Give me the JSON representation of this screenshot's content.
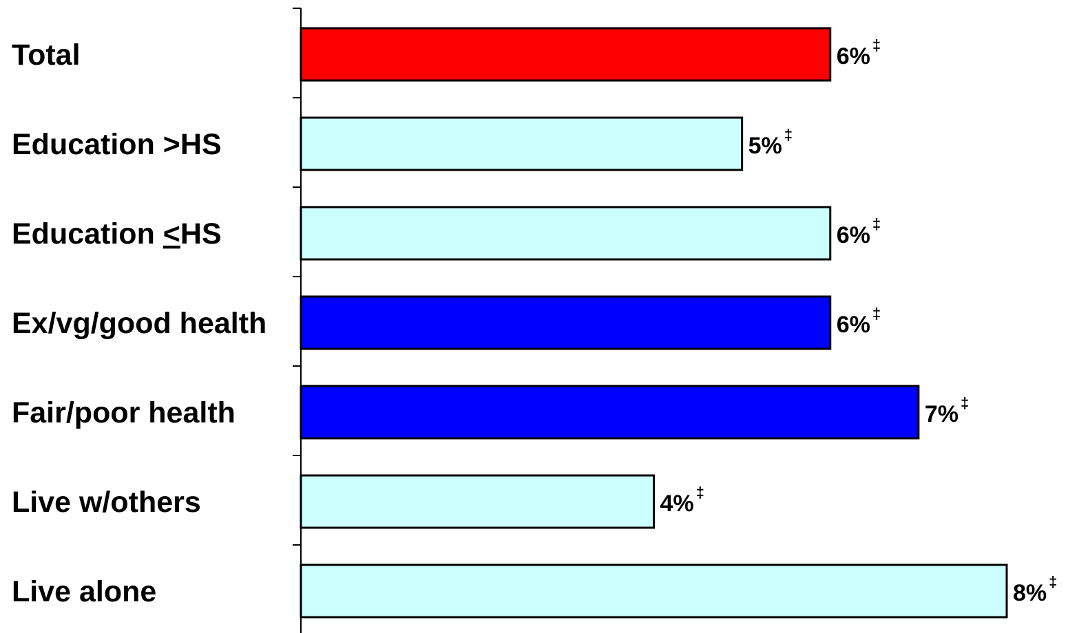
{
  "chart_data": {
    "type": "bar",
    "orientation": "horizontal",
    "categories": [
      "Total",
      "Education >HS",
      "Education ≤HS",
      "Ex/vg/good health",
      "Fair/poor health",
      "Live w/others",
      "Live alone"
    ],
    "values": [
      6,
      5,
      6,
      6,
      7,
      4,
      8
    ],
    "value_labels": [
      "6%",
      "5%",
      "6%",
      "6%",
      "7%",
      "4%",
      "8%"
    ],
    "value_marks": [
      "‡",
      "‡",
      "‡",
      "‡",
      "‡",
      "‡",
      "‡"
    ],
    "bar_colors": [
      "#ff0000",
      "#ccffff",
      "#ccffff",
      "#0000ff",
      "#0000ff",
      "#ccffff",
      "#ccffff"
    ],
    "bar_outline_color": "#000000",
    "xlim": [
      0,
      8
    ],
    "grid": false,
    "legend": "none",
    "title": "",
    "xlabel": "",
    "ylabel": ""
  }
}
